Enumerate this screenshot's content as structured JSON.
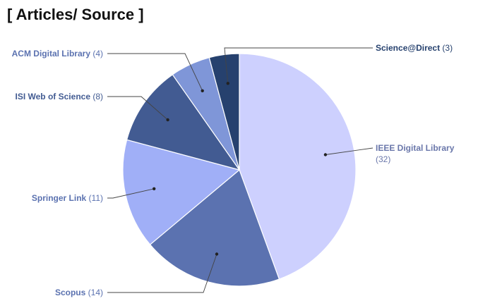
{
  "chart_data": {
    "type": "pie",
    "title": "[ Articles/ Source ]",
    "slices": [
      {
        "label": "IEEE Digital Library",
        "value": 32,
        "color": "#cdd0fe",
        "text_color": "#6a77aa"
      },
      {
        "label": "Scopus",
        "value": 14,
        "color": "#5b72b0",
        "text_color": "#5b72b0"
      },
      {
        "label": "Springer Link",
        "value": 11,
        "color": "#a0aff7",
        "text_color": "#5b72b0"
      },
      {
        "label": "ISI Web of Science",
        "value": 8,
        "color": "#425b92",
        "text_color": "#425b92"
      },
      {
        "label": "ACM Digital Library",
        "value": 4,
        "color": "#7f96d8",
        "text_color": "#5b72b0"
      },
      {
        "label": "Science@Direct",
        "value": 3,
        "color": "#26416e",
        "text_color": "#26416e"
      }
    ]
  }
}
